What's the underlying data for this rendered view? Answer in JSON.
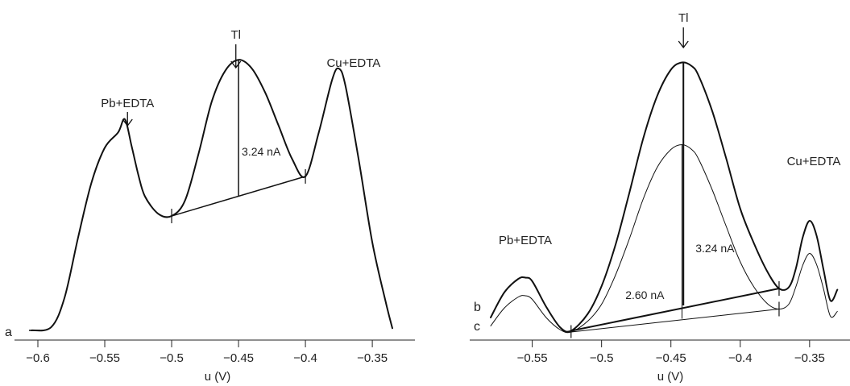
{
  "chart_data": [
    {
      "type": "line",
      "xlabel": "u (V)",
      "xlim": [
        -0.62,
        -0.32
      ],
      "x_ticks": [
        -0.6,
        -0.55,
        -0.5,
        -0.45,
        -0.4,
        -0.35
      ],
      "x_tick_labels": [
        "−0.6",
        "−0.55",
        "−0.5",
        "−0.45",
        "−0.4",
        "−0.35"
      ],
      "grid": false,
      "series": [
        {
          "name": "a",
          "x": [
            -0.605,
            -0.59,
            -0.58,
            -0.57,
            -0.56,
            -0.55,
            -0.54,
            -0.535,
            -0.53,
            -0.525,
            -0.52,
            -0.51,
            -0.5,
            -0.49,
            -0.48,
            -0.47,
            -0.46,
            -0.45,
            -0.44,
            -0.43,
            -0.42,
            -0.41,
            -0.4,
            -0.39,
            -0.38,
            -0.375,
            -0.37,
            -0.36,
            -0.35,
            -0.34,
            -0.335
          ],
          "y": [
            0.0,
            0.15,
            1.5,
            4.2,
            6.7,
            8.3,
            9.0,
            9.6,
            8.4,
            7.1,
            6.1,
            5.3,
            5.2,
            5.9,
            8.0,
            10.4,
            11.8,
            12.3,
            11.9,
            10.8,
            9.3,
            7.8,
            7.0,
            9.0,
            11.4,
            11.9,
            11.1,
            7.7,
            4.0,
            1.3,
            0.1
          ]
        }
      ],
      "annotations": [
        {
          "text": "Pb+EDTA",
          "x": -0.533
        },
        {
          "text": "Tl",
          "x": -0.452
        },
        {
          "text": "Cu+EDTA",
          "x": -0.37
        },
        {
          "text": "3.24 nA",
          "x": -0.45
        }
      ],
      "baseline": {
        "x": [
          -0.5,
          -0.4
        ],
        "y": [
          5.2,
          7.0
        ]
      },
      "peak_height": {
        "x": -0.45,
        "y": [
          6.1,
          12.3
        ]
      }
    },
    {
      "type": "line",
      "xlabel": "u (V)",
      "xlim": [
        -0.59,
        -0.32
      ],
      "x_ticks": [
        -0.55,
        -0.5,
        -0.45,
        -0.4,
        -0.35
      ],
      "x_tick_labels": [
        "−0.55",
        "−0.5",
        "−0.45",
        "−0.4",
        "−0.35"
      ],
      "grid": false,
      "series": [
        {
          "name": "b",
          "x": [
            -0.58,
            -0.57,
            -0.56,
            -0.555,
            -0.55,
            -0.54,
            -0.53,
            -0.522,
            -0.51,
            -0.5,
            -0.49,
            -0.48,
            -0.47,
            -0.46,
            -0.45,
            -0.442,
            -0.435,
            -0.43,
            -0.42,
            -0.41,
            -0.4,
            -0.39,
            -0.38,
            -0.372,
            -0.365,
            -0.36,
            -0.355,
            -0.35,
            -0.345,
            -0.34,
            -0.335,
            -0.33
          ],
          "y": [
            1.2,
            3.3,
            4.4,
            4.5,
            4.2,
            2.1,
            0.4,
            0.1,
            1.5,
            3.8,
            7.2,
            11.5,
            16.0,
            19.5,
            21.7,
            22.3,
            22.0,
            21.2,
            18.2,
            14.3,
            10.2,
            7.3,
            4.9,
            3.6,
            3.7,
            5.2,
            7.8,
            9.2,
            8.0,
            5.2,
            2.6,
            3.5
          ]
        },
        {
          "name": "c",
          "x": [
            -0.58,
            -0.57,
            -0.56,
            -0.555,
            -0.55,
            -0.54,
            -0.53,
            -0.522,
            -0.51,
            -0.5,
            -0.49,
            -0.48,
            -0.47,
            -0.46,
            -0.45,
            -0.442,
            -0.435,
            -0.43,
            -0.42,
            -0.41,
            -0.4,
            -0.39,
            -0.38,
            -0.372,
            -0.365,
            -0.36,
            -0.355,
            -0.35,
            -0.345,
            -0.34,
            -0.335,
            -0.33
          ],
          "y": [
            0.5,
            2.0,
            2.9,
            3.0,
            2.7,
            1.2,
            0.2,
            0.0,
            0.9,
            2.3,
            4.7,
            7.7,
            11.0,
            13.6,
            15.1,
            15.5,
            15.1,
            14.3,
            11.7,
            8.7,
            5.8,
            3.7,
            2.3,
            1.9,
            2.3,
            3.7,
            5.5,
            6.5,
            5.6,
            3.6,
            1.3,
            1.7
          ]
        }
      ],
      "annotations": [
        {
          "text": "Pb+EDTA",
          "x": -0.555
        },
        {
          "text": "Tl",
          "x": -0.441
        },
        {
          "text": "Cu+EDTA",
          "x": -0.347
        },
        {
          "text": "3.24 nA",
          "x": -0.423
        },
        {
          "text": "2.60 nA",
          "x": -0.46
        }
      ],
      "curve_labels": [
        "b",
        "c"
      ],
      "baseline_b": {
        "x": [
          -0.522,
          -0.372
        ],
        "y": [
          0.1,
          3.6
        ]
      },
      "baseline_c": {
        "x": [
          -0.522,
          -0.372
        ],
        "y": [
          0.0,
          1.9
        ]
      },
      "peak_height_b": {
        "x": -0.441,
        "y": [
          2.2,
          22.3
        ]
      },
      "peak_height_c": {
        "x": -0.442,
        "y": [
          1.1,
          15.5
        ]
      }
    }
  ]
}
